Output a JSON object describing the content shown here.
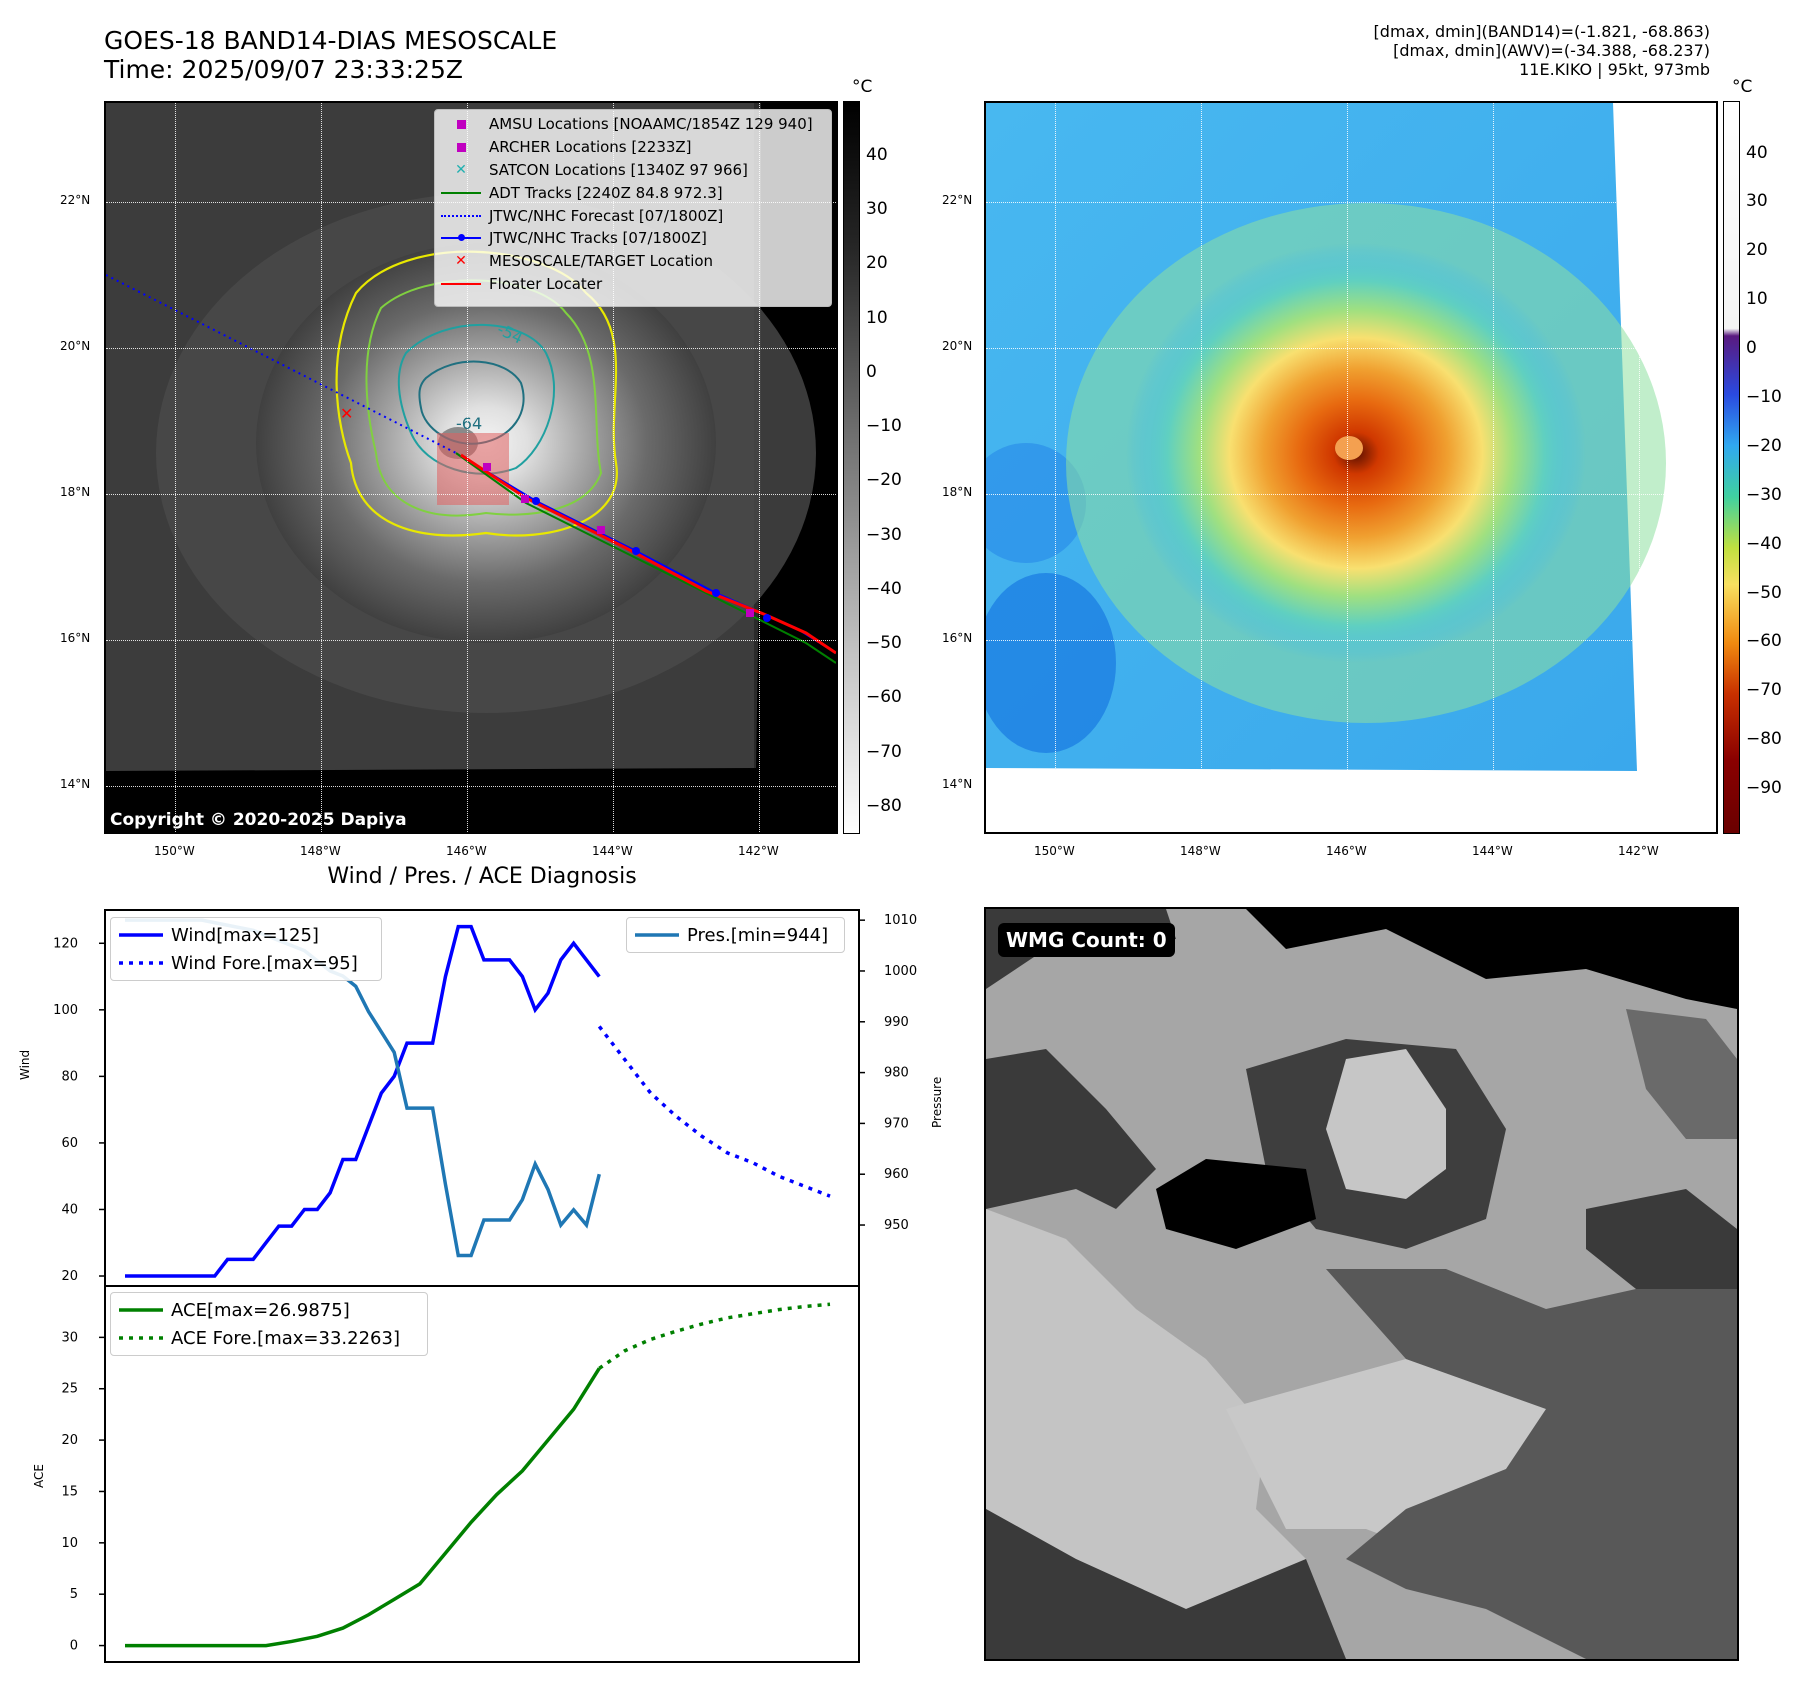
{
  "header": {
    "title_line1": "GOES-18 BAND14-DIAS MESOSCALE",
    "title_line2": "Time: 2025/09/07 23:33:25Z",
    "stats_line1": "[dmax, dmin](BAND14)=(-1.821, -68.863)",
    "stats_line2": "[dmax, dmin](AWV)=(-34.388, -68.237)",
    "stats_line3": "11E.KIKO | 95kt, 973mb"
  },
  "map": {
    "lat_labels": [
      "22°N",
      "20°N",
      "18°N",
      "16°N",
      "14°N"
    ],
    "lon_labels": [
      "150°W",
      "148°W",
      "146°W",
      "144°W",
      "142°W"
    ],
    "copyright": "Copyright © 2020-2025 Dapiya",
    "contour_labels": [
      "-54",
      "-64"
    ],
    "legend": [
      {
        "label": "AMSU Locations [NOAAMC/1854Z 129 940]",
        "color": "#c000c0",
        "marker": "square"
      },
      {
        "label": "ARCHER Locations [2233Z]",
        "color": "#c000c0",
        "marker": "square"
      },
      {
        "label": "SATCON Locations [1340Z 97 966]",
        "color": "#20b0b0",
        "marker": "x"
      },
      {
        "label": "ADT Tracks [2240Z 84.8 972.3]",
        "color": "#008000",
        "marker": "line"
      },
      {
        "label": "JTWC/NHC Forecast [07/1800Z]",
        "color": "#0000ff",
        "marker": "dotted"
      },
      {
        "label": "JTWC/NHC Tracks [07/1800Z]",
        "color": "#0000ff",
        "marker": "line-dot"
      },
      {
        "label": "MESOSCALE/TARGET Location",
        "color": "#ff0000",
        "marker": "x"
      },
      {
        "label": "Floater Locater",
        "color": "#ff0000",
        "marker": "line"
      }
    ]
  },
  "colorbar_gray": {
    "unit": "°C",
    "ticks": [
      "40",
      "30",
      "20",
      "10",
      "0",
      "−10",
      "−20",
      "−30",
      "−40",
      "−50",
      "−60",
      "−70",
      "−80"
    ]
  },
  "colorbar_color": {
    "unit": "°C",
    "ticks": [
      "40",
      "30",
      "20",
      "10",
      "0",
      "−10",
      "−20",
      "−30",
      "−40",
      "−50",
      "−60",
      "−70",
      "−80",
      "−90"
    ]
  },
  "chart_data": [
    {
      "type": "line",
      "title": "Wind / Pres. / ACE Diagnosis",
      "ylabel": "Wind",
      "y2label": "Pressure",
      "ylim": [
        17,
        130
      ],
      "y2lim": [
        938,
        1012
      ],
      "yticks": [
        20,
        40,
        60,
        80,
        100,
        120
      ],
      "y2ticks": [
        950,
        960,
        970,
        980,
        990,
        1000,
        1010
      ],
      "x_count": 55,
      "series": [
        {
          "name": "Wind[max=125]",
          "style": "solid",
          "color": "#0000ff",
          "x": [
            0,
            1,
            2,
            3,
            4,
            5,
            6,
            7,
            8,
            9,
            10,
            11,
            12,
            13,
            14,
            15,
            16,
            17,
            18,
            19,
            20,
            21,
            22,
            23,
            24,
            25,
            26,
            27,
            28,
            29,
            30,
            31,
            32,
            33,
            34,
            35,
            36,
            37
          ],
          "values": [
            20,
            20,
            20,
            20,
            20,
            20,
            20,
            20,
            25,
            25,
            25,
            30,
            35,
            35,
            40,
            40,
            45,
            55,
            55,
            65,
            75,
            80,
            90,
            90,
            90,
            110,
            125,
            125,
            115,
            115,
            115,
            110,
            100,
            105,
            115,
            120,
            115,
            110
          ]
        },
        {
          "name": "Wind Fore.[max=95]",
          "style": "dotted",
          "color": "#0000ff",
          "x": [
            37,
            39,
            41,
            43,
            45,
            47,
            49,
            51,
            53,
            55
          ],
          "values": [
            95,
            85,
            75,
            68,
            62,
            57,
            54,
            50,
            47,
            44
          ]
        },
        {
          "name": "Pres.[min=944]",
          "style": "solid",
          "color": "#1f77b4",
          "axis": "y2",
          "x": [
            0,
            2,
            4,
            6,
            8,
            10,
            12,
            14,
            16,
            17,
            18,
            19,
            20,
            21,
            22,
            23,
            24,
            25,
            26,
            27,
            28,
            29,
            30,
            31,
            32,
            33,
            34,
            35,
            36,
            37
          ],
          "values": [
            1010,
            1010,
            1010,
            1010,
            1009,
            1008,
            1006,
            1004,
            1000,
            999,
            997,
            992,
            988,
            984,
            973,
            973,
            973,
            958,
            944,
            944,
            951,
            951,
            951,
            955,
            962,
            957,
            950,
            953,
            950,
            960
          ]
        }
      ]
    },
    {
      "type": "line",
      "ylabel": "ACE",
      "ylim": [
        -1.6,
        35
      ],
      "yticks": [
        0,
        5,
        10,
        15,
        20,
        25,
        30
      ],
      "x_count": 55,
      "series": [
        {
          "name": "ACE[max=26.9875]",
          "style": "solid",
          "color": "#008000",
          "x": [
            0,
            5,
            11,
            13,
            15,
            17,
            19,
            21,
            23,
            25,
            27,
            29,
            31,
            33,
            35,
            37
          ],
          "values": [
            0,
            0,
            0,
            0.4,
            0.9,
            1.7,
            3,
            4.5,
            6,
            9,
            12,
            14.7,
            17,
            20,
            23,
            26.9875
          ]
        },
        {
          "name": "ACE Fore.[max=33.2263]",
          "style": "dotted",
          "color": "#008000",
          "x": [
            37,
            39,
            41,
            43,
            45,
            47,
            49,
            51,
            53,
            55
          ],
          "values": [
            26.9875,
            28.7,
            29.8,
            30.6,
            31.3,
            31.9,
            32.3,
            32.7,
            33.0,
            33.2263
          ]
        }
      ]
    }
  ],
  "wmg": {
    "label": "WMG Count: 0"
  }
}
